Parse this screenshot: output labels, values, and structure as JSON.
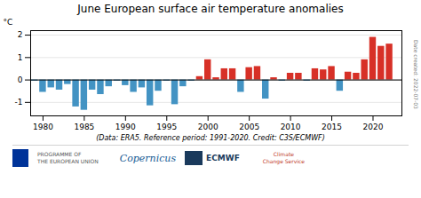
{
  "chart_data": {
    "type": "bar",
    "title": "June European surface air temperature anomalies",
    "ylabel": "°C",
    "xlabel": "(Data: ERA5.  Reference period: 1991-2020.  Credit: C3S/ECMWF)",
    "x": [
      1979,
      1980,
      1981,
      1982,
      1983,
      1984,
      1985,
      1986,
      1987,
      1988,
      1989,
      1990,
      1991,
      1992,
      1993,
      1994,
      1995,
      1996,
      1997,
      1998,
      1999,
      2000,
      2001,
      2002,
      2003,
      2004,
      2005,
      2006,
      2007,
      2008,
      2009,
      2010,
      2011,
      2012,
      2013,
      2014,
      2015,
      2016,
      2017,
      2018,
      2019,
      2020,
      2021,
      2022
    ],
    "values": [
      -0.05,
      -0.55,
      -0.35,
      -0.45,
      -0.2,
      -1.2,
      -1.35,
      -0.45,
      -0.65,
      -0.3,
      -0.05,
      -0.25,
      -0.55,
      -0.35,
      -1.15,
      -0.5,
      -0.05,
      -1.1,
      -0.3,
      -0.05,
      0.15,
      0.9,
      0.1,
      0.5,
      0.5,
      -0.55,
      0.55,
      0.6,
      -0.85,
      0.1,
      -0.05,
      0.3,
      0.3,
      -0.05,
      0.5,
      0.45,
      0.6,
      -0.5,
      0.35,
      0.3,
      0.9,
      1.9,
      1.5,
      1.6
    ],
    "colors": [
      "#4393c3",
      "#4393c3",
      "#4393c3",
      "#4393c3",
      "#4393c3",
      "#4393c3",
      "#4393c3",
      "#4393c3",
      "#4393c3",
      "#4393c3",
      "#4393c3",
      "#4393c3",
      "#4393c3",
      "#4393c3",
      "#4393c3",
      "#4393c3",
      "#4393c3",
      "#4393c3",
      "#4393c3",
      "#4393c3",
      "#d73027",
      "#d73027",
      "#d73027",
      "#d73027",
      "#d73027",
      "#4393c3",
      "#d73027",
      "#d73027",
      "#4393c3",
      "#d73027",
      "#4393c3",
      "#d73027",
      "#d73027",
      "#4393c3",
      "#d73027",
      "#d73027",
      "#d73027",
      "#4393c3",
      "#d73027",
      "#d73027",
      "#d73027",
      "#d73027",
      "#d73027",
      "#d73027"
    ],
    "xlim": [
      1978.5,
      2023.5
    ],
    "xticks": [
      1980,
      1985,
      1990,
      1995,
      2000,
      2005,
      2010,
      2015,
      2020
    ],
    "ylim": [
      -1.6,
      2.2
    ],
    "yticks": [
      -1,
      0,
      1,
      2
    ],
    "grid": true,
    "annotations": [
      "Date created: 2022-07-03",
      "PROGRAMME OF\nTHE EUROPEAN UNION",
      "Copernicus",
      "ECMWF",
      "Climate\nChange Service"
    ]
  }
}
